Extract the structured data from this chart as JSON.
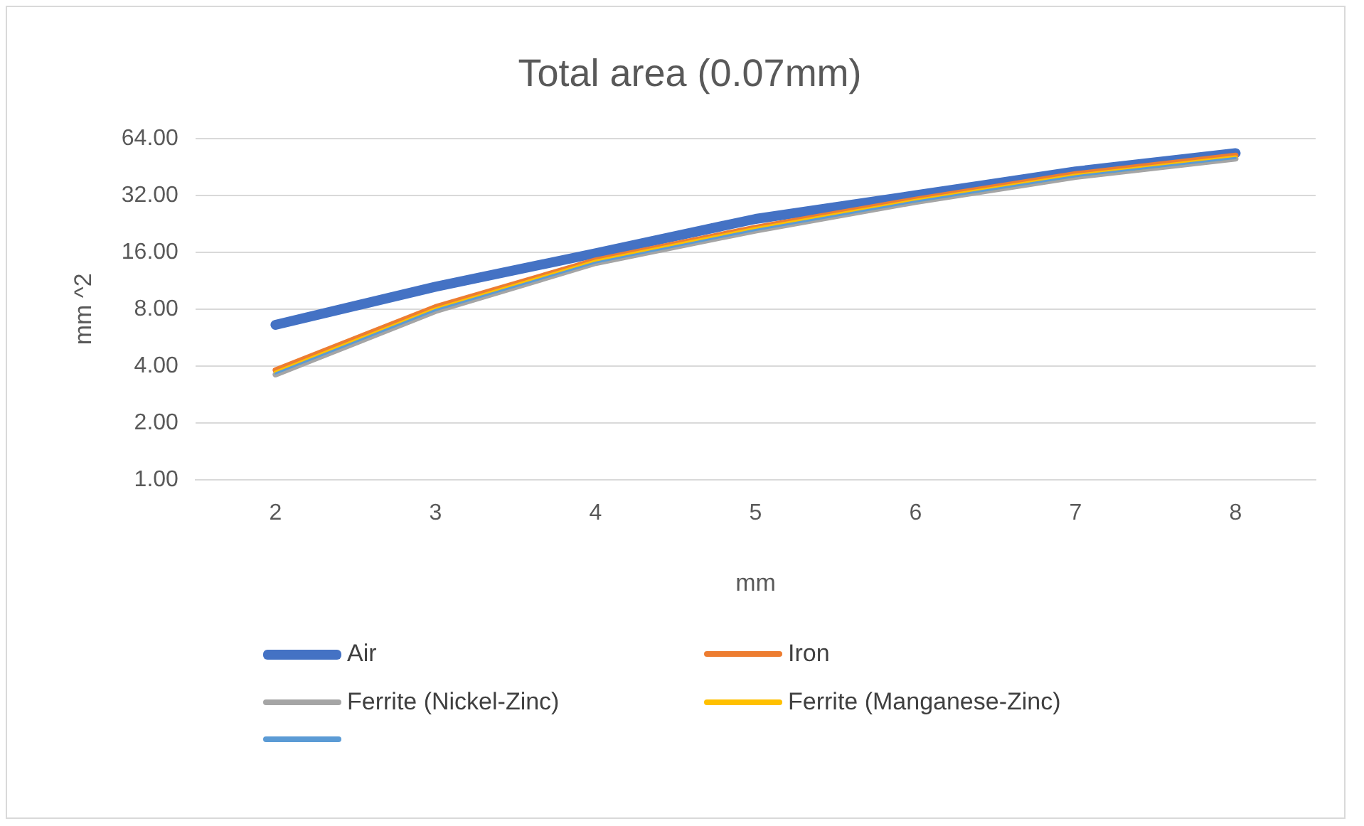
{
  "chart_data": {
    "type": "line",
    "title": "Total area (0.07mm)",
    "xlabel": "mm",
    "ylabel": "mm ^2",
    "categories": [
      "2",
      "3",
      "4",
      "5",
      "6",
      "7",
      "8"
    ],
    "series": [
      {
        "name": "Air",
        "color": "#4472c4",
        "values": [
          6.6,
          10.5,
          15.8,
          24,
          32,
          42.8,
          53.5
        ]
      },
      {
        "name": "Iron",
        "color": "#ed7d31",
        "values": [
          3.8,
          8.2,
          14.5,
          21.6,
          30.4,
          41.5,
          52
        ]
      },
      {
        "name": "Ferrite (Nickel-Zinc)",
        "color": "#a5a5a5",
        "values": [
          3.6,
          7.8,
          14,
          20.8,
          29.5,
          40,
          50
        ]
      },
      {
        "name": "Ferrite (Manganese-Zinc)",
        "color": "#ffc000",
        "values": [
          3.7,
          8,
          14.3,
          21.3,
          30,
          40.8,
          51
        ]
      },
      {
        "color": "#5b9bd5",
        "values": [
          3.65,
          7.9,
          14.1,
          21,
          29.7,
          40.4,
          50.5
        ]
      }
    ],
    "log": "y",
    "ylim": [
      1,
      64
    ],
    "yticks": [
      {
        "value": 1,
        "label": "1.00"
      },
      {
        "value": 2,
        "label": "2.00"
      },
      {
        "value": 4,
        "label": "4.00"
      },
      {
        "value": 8,
        "label": "8.00"
      },
      {
        "value": 16,
        "label": "16.00"
      },
      {
        "value": 32,
        "label": "32.00"
      },
      {
        "value": 64,
        "label": "64.00"
      }
    ],
    "grid": "y",
    "legend": "bottom",
    "marker": "none",
    "line_style": "solid"
  }
}
